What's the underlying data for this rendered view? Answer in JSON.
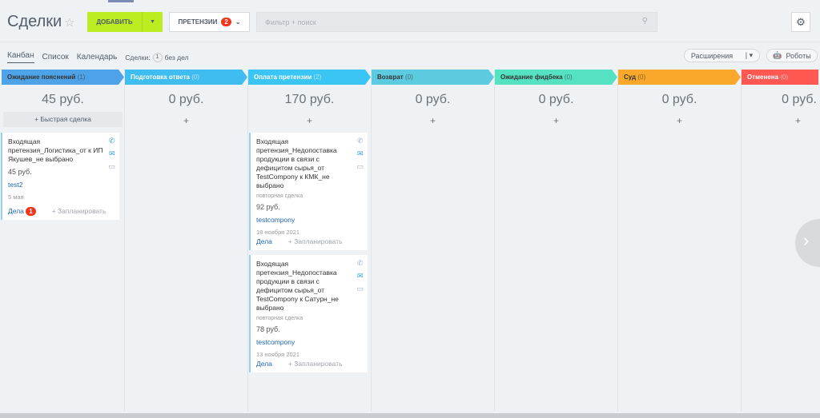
{
  "header": {
    "title": "Сделки",
    "add_label": "ДОБАВИТЬ",
    "category_label": "ПРЕТЕНЗИИ",
    "category_badge": "2",
    "search_placeholder": "Фильтр + поиск"
  },
  "views": {
    "items": [
      "Канбан",
      "Список",
      "Календарь"
    ],
    "deals_label": "Сделки:",
    "deals_count": "1",
    "deals_suffix": "без дел"
  },
  "toolbar": {
    "extensions": "Расширения",
    "robots": "Роботы"
  },
  "columns": [
    {
      "name": "Ожидание пояснений",
      "count": "(1)",
      "sum": "45 руб.",
      "color": "#4ea3e8"
    },
    {
      "name": "Подготовка ответа",
      "count": "(0)",
      "sum": "0 руб.",
      "color": "#3fbdf0"
    },
    {
      "name": "Оплата претензии",
      "count": "(2)",
      "sum": "170 руб.",
      "color": "#3bc5f4"
    },
    {
      "name": "Возврат",
      "count": "(0)",
      "sum": "0 руб.",
      "color": "#5ccbe0"
    },
    {
      "name": "Ожидание фидбека",
      "count": "(0)",
      "sum": "0 руб.",
      "color": "#55e2c3"
    },
    {
      "name": "Суд",
      "count": "(0)",
      "sum": "0 руб.",
      "color": "#f9a82c"
    },
    {
      "name": "Отменена",
      "count": "(0)",
      "sum": "0 руб.",
      "color": "#ff5752"
    }
  ],
  "quick_deal": "+ Быстрая сделка",
  "add_symbol": "+",
  "cards": [
    {
      "title": "Входящая претензия_Логистика_от к ИП Якушев_не выбрано",
      "price": "45 руб.",
      "company": "test2",
      "date": "5 мая",
      "tasks": "Дела",
      "tasks_badge": "1",
      "plan": "+ Запланировать"
    },
    {
      "title": "Входящая претензия_Недопоставка продукции в связи с дефицитом сырья_от TestCompony к КМК_не выбрано",
      "sub": "повторная сделка",
      "price": "92 руб.",
      "company": "testcompony",
      "date": "18 ноября 2021",
      "tasks": "Дела",
      "plan": "+ Запланировать"
    },
    {
      "title": "Входящая претензия_Недопоставка продукции в связи с дефицитом сырья_от TestCompony к Сатурн_не выбрано",
      "sub": "повторная сделка",
      "price": "78 руб.",
      "company": "testcompony",
      "date": "13 ноября 2021",
      "tasks": "Дела",
      "plan": "+ Запланировать"
    }
  ]
}
